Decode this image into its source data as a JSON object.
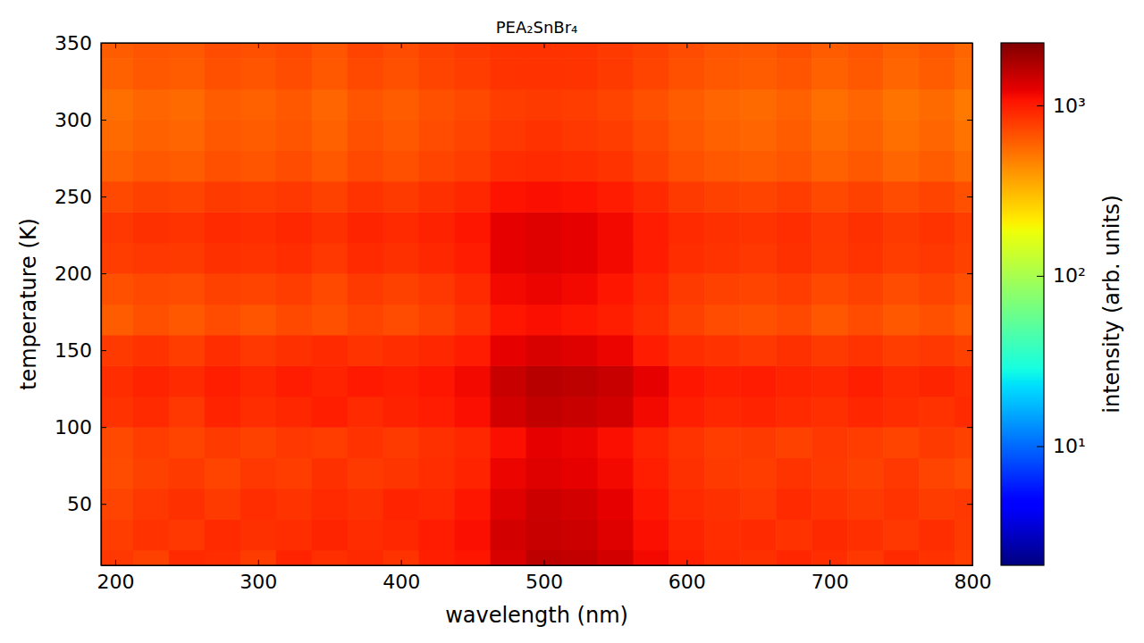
{
  "chart_data": {
    "type": "heatmap",
    "title": "PEA₂SnBr₄",
    "x_label": "wavelength (nm)",
    "y_label": "temperature (K)",
    "xlim": [
      190,
      800
    ],
    "ylim": [
      10,
      350
    ],
    "xticks": [
      200,
      300,
      400,
      500,
      600,
      700,
      800
    ],
    "yticks": [
      50,
      100,
      150,
      200,
      250,
      300,
      350
    ],
    "heatmap": {
      "x": [
        200,
        225,
        250,
        275,
        300,
        325,
        350,
        375,
        400,
        425,
        450,
        475,
        500,
        525,
        550,
        575,
        600,
        625,
        650,
        675,
        700,
        725,
        750,
        775,
        800
      ],
      "y": [
        10,
        30,
        50,
        70,
        90,
        110,
        130,
        150,
        170,
        190,
        210,
        230,
        250,
        270,
        290,
        310,
        330,
        350
      ],
      "values": [
        [
          820,
          760,
          900,
          880,
          790,
          950,
          870,
          910,
          840,
          980,
          1050,
          1350,
          1600,
          1550,
          1400,
          1150,
          980,
          900,
          860,
          930,
          880,
          820,
          900,
          850,
          780
        ],
        [
          780,
          850,
          820,
          900,
          860,
          880,
          940,
          890,
          920,
          1000,
          1100,
          1400,
          1500,
          1450,
          1300,
          1100,
          950,
          880,
          900,
          850,
          910,
          870,
          820,
          880,
          800
        ],
        [
          750,
          820,
          860,
          800,
          880,
          840,
          900,
          860,
          950,
          920,
          1050,
          1300,
          1450,
          1400,
          1250,
          1050,
          900,
          860,
          820,
          900,
          850,
          800,
          840,
          790,
          820
        ],
        [
          700,
          760,
          800,
          740,
          820,
          780,
          860,
          800,
          830,
          880,
          950,
          1200,
          1300,
          1250,
          1150,
          980,
          860,
          800,
          780,
          840,
          800,
          760,
          820,
          750,
          700
        ],
        [
          720,
          780,
          740,
          800,
          760,
          820,
          780,
          850,
          800,
          860,
          920,
          1100,
          1250,
          1200,
          1100,
          950,
          840,
          780,
          800,
          760,
          820,
          780,
          740,
          800,
          760
        ],
        [
          850,
          900,
          820,
          950,
          880,
          920,
          980,
          900,
          960,
          1000,
          1100,
          1400,
          1550,
          1500,
          1400,
          1150,
          980,
          920,
          950,
          900,
          870,
          930,
          880,
          850,
          900
        ],
        [
          880,
          950,
          900,
          980,
          920,
          1000,
          950,
          1020,
          980,
          1050,
          1150,
          1500,
          1650,
          1600,
          1500,
          1250,
          1050,
          980,
          1000,
          950,
          920,
          980,
          900,
          940,
          880
        ],
        [
          800,
          850,
          780,
          880,
          820,
          860,
          900,
          840,
          880,
          920,
          1000,
          1250,
          1350,
          1300,
          1200,
          1000,
          880,
          850,
          820,
          860,
          800,
          840,
          780,
          820,
          760
        ],
        [
          620,
          680,
          640,
          700,
          660,
          720,
          680,
          740,
          700,
          760,
          850,
          1050,
          1100,
          1050,
          980,
          880,
          760,
          700,
          680,
          720,
          650,
          700,
          640,
          680,
          620
        ],
        [
          680,
          720,
          700,
          760,
          740,
          780,
          720,
          800,
          760,
          820,
          900,
          1150,
          1200,
          1150,
          1050,
          920,
          800,
          760,
          740,
          780,
          720,
          760,
          700,
          740,
          680
        ],
        [
          780,
          820,
          800,
          860,
          840,
          880,
          820,
          900,
          860,
          920,
          1000,
          1250,
          1300,
          1250,
          1150,
          1000,
          880,
          840,
          820,
          860,
          800,
          840,
          780,
          820,
          760
        ],
        [
          820,
          860,
          840,
          900,
          880,
          920,
          860,
          940,
          900,
          960,
          1050,
          1250,
          1300,
          1250,
          1150,
          1000,
          900,
          860,
          840,
          880,
          820,
          860,
          800,
          840,
          780
        ],
        [
          720,
          760,
          740,
          800,
          780,
          820,
          760,
          840,
          800,
          860,
          920,
          1080,
          1100,
          1080,
          1000,
          900,
          800,
          760,
          740,
          780,
          720,
          760,
          700,
          740,
          680
        ],
        [
          600,
          640,
          620,
          680,
          660,
          700,
          640,
          720,
          680,
          740,
          780,
          880,
          900,
          880,
          840,
          760,
          680,
          640,
          620,
          660,
          600,
          640,
          580,
          620,
          560
        ],
        [
          560,
          600,
          580,
          640,
          620,
          660,
          600,
          680,
          640,
          700,
          740,
          820,
          850,
          820,
          780,
          720,
          640,
          600,
          580,
          620,
          560,
          600,
          540,
          580,
          520
        ],
        [
          540,
          580,
          560,
          620,
          600,
          640,
          580,
          660,
          620,
          680,
          720,
          780,
          800,
          780,
          740,
          680,
          620,
          580,
          560,
          600,
          540,
          580,
          520,
          560,
          500
        ],
        [
          600,
          640,
          620,
          680,
          660,
          700,
          640,
          720,
          680,
          740,
          780,
          840,
          850,
          840,
          800,
          740,
          680,
          640,
          620,
          660,
          600,
          640,
          580,
          620,
          560
        ],
        [
          620,
          660,
          640,
          700,
          680,
          720,
          660,
          740,
          700,
          760,
          800,
          840,
          850,
          840,
          800,
          760,
          700,
          660,
          640,
          680,
          620,
          660,
          600,
          640,
          580
        ]
      ]
    },
    "colorbar": {
      "label": "intensity (arb. units)",
      "log": true,
      "lim": [
        2,
        2330
      ],
      "ticks": [
        {
          "value": 10,
          "label": "10¹"
        },
        {
          "value": 100,
          "label": "10²"
        },
        {
          "value": 1000,
          "label": "10³"
        }
      ]
    }
  }
}
